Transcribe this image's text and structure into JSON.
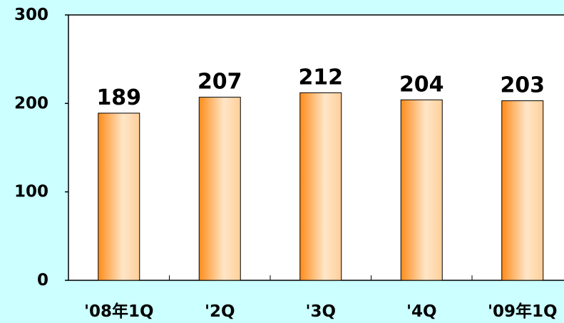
{
  "chart_data": {
    "type": "bar",
    "categories": [
      "'08年1Q",
      "'2Q",
      "'3Q",
      "'4Q",
      "'09年1Q"
    ],
    "values": [
      189,
      207,
      212,
      204,
      203
    ],
    "data_labels": [
      "189",
      "207",
      "212",
      "204",
      "203"
    ],
    "ylim": [
      0,
      300
    ],
    "yticks": [
      0,
      100,
      200,
      300
    ],
    "ytick_labels": [
      "0",
      "100",
      "200",
      "300"
    ],
    "grid": false,
    "legend": "none"
  },
  "colors": {
    "background": "#ccffff",
    "plot_area": "#ffffff",
    "bar_edge": "#ff8c1a",
    "bar_center": "#ffe6c8",
    "axis": "#000000"
  }
}
